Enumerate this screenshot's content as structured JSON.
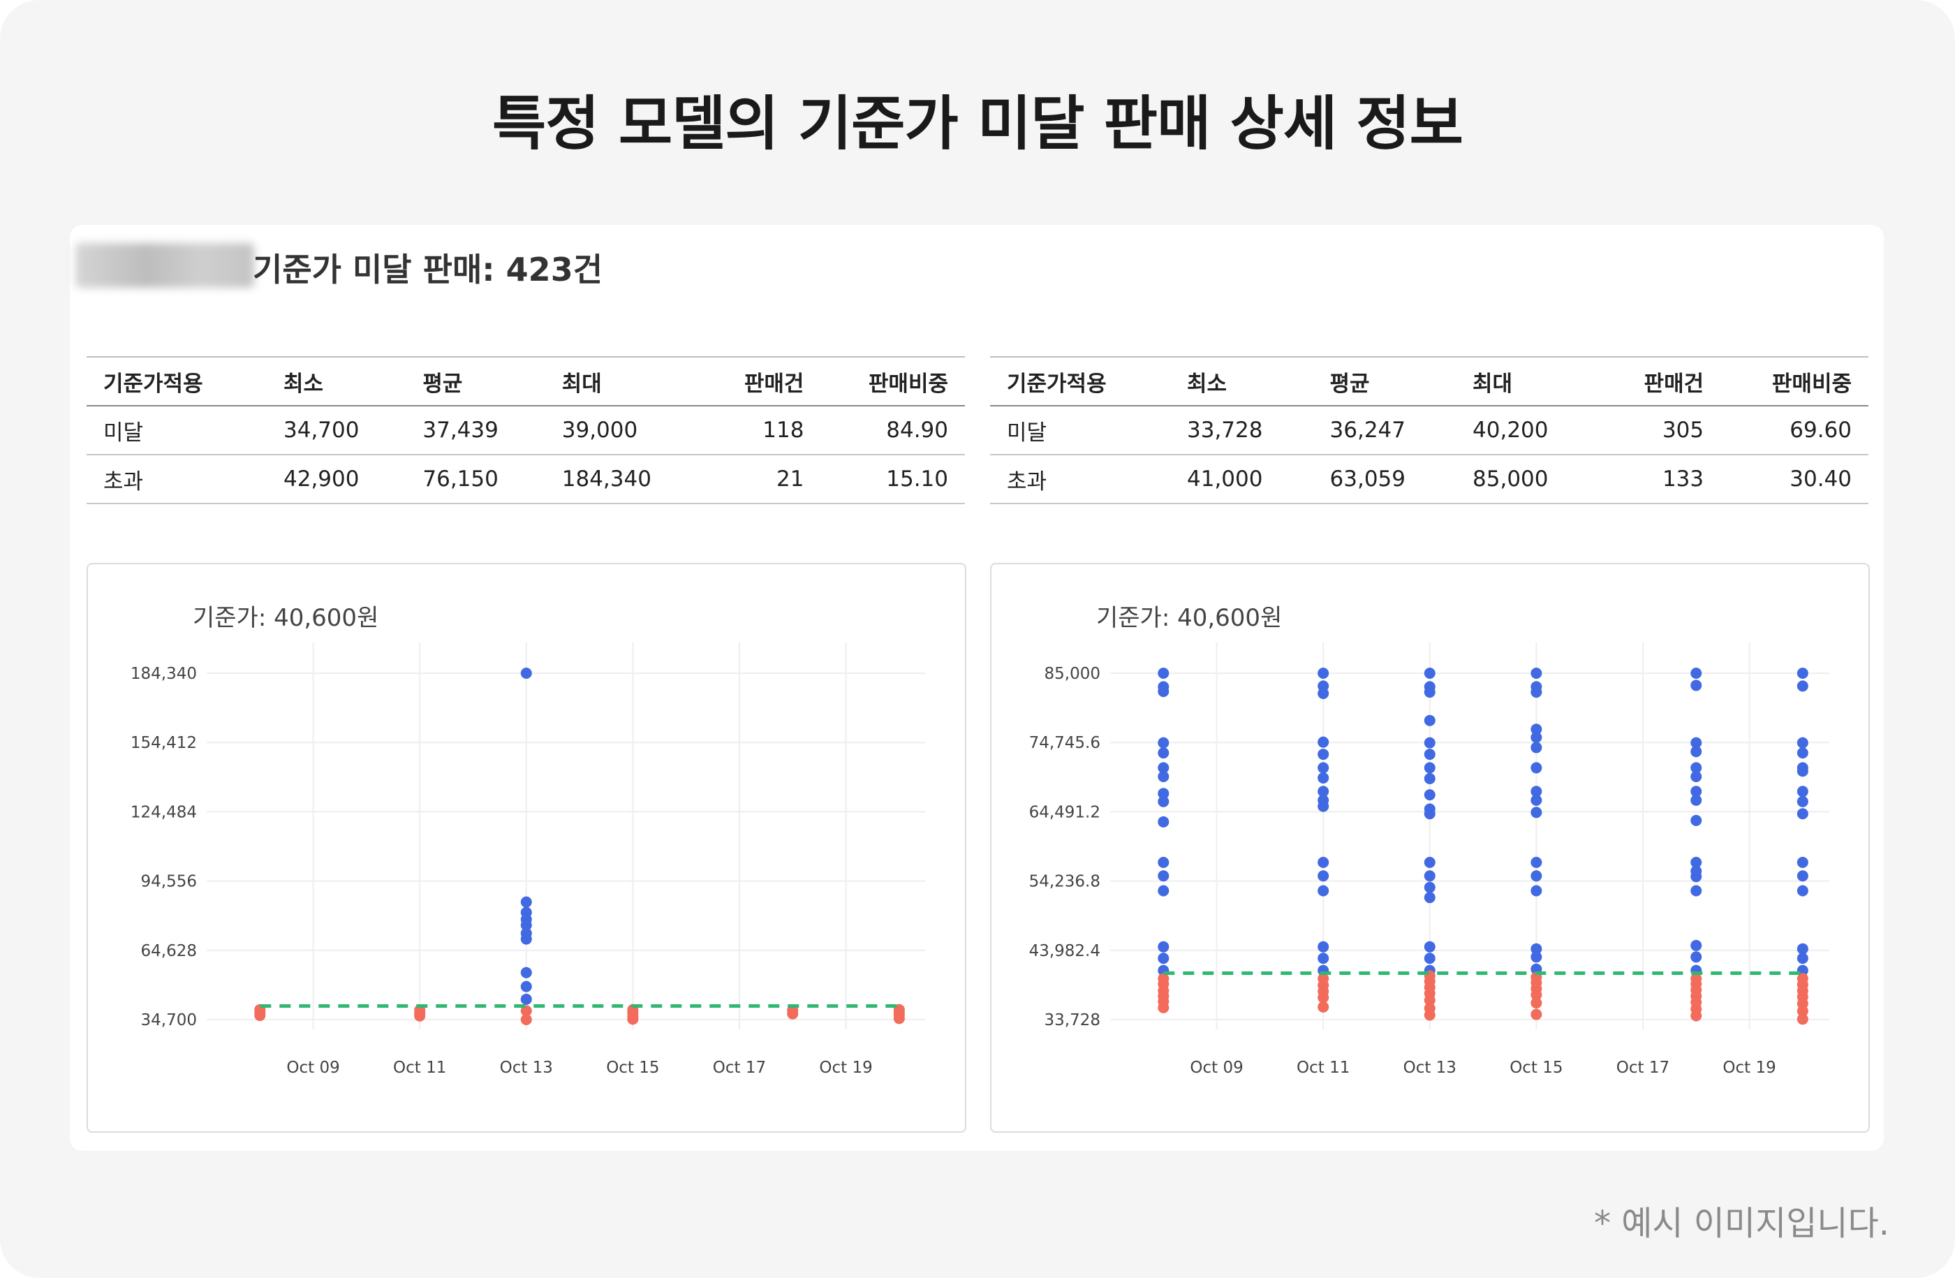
{
  "page": {
    "title": "특정 모델의 기준가 미달 판매 상세 정보",
    "note": "* 예시 이미지입니다."
  },
  "card": {
    "heading": "기준가 미달 판매: 423건"
  },
  "tables": [
    {
      "headers": [
        "기준가적용",
        "최소",
        "평균",
        "최대",
        "판매건",
        "판매비중"
      ],
      "rows": [
        [
          "미달",
          "34,700",
          "37,439",
          "39,000",
          "118",
          "84.90"
        ],
        [
          "초과",
          "42,900",
          "76,150",
          "184,340",
          "21",
          "15.10"
        ]
      ]
    },
    {
      "headers": [
        "기준가적용",
        "최소",
        "평균",
        "최대",
        "판매건",
        "판매비중"
      ],
      "rows": [
        [
          "미달",
          "33,728",
          "36,247",
          "40,200",
          "305",
          "69.60"
        ],
        [
          "초과",
          "41,000",
          "63,059",
          "85,000",
          "133",
          "30.40"
        ]
      ]
    }
  ],
  "colors": {
    "above": "#4169e1",
    "below": "#f26b5b",
    "reference": "#2eb872",
    "grid": "#eeeeee"
  },
  "chart_data": [
    {
      "type": "scatter",
      "title": "기준가: 40,600원",
      "reference_line": 40600,
      "x_ticks": [
        "Oct 09",
        "Oct 11",
        "Oct 13",
        "Oct 15",
        "Oct 17",
        "Oct 19"
      ],
      "y_ticks": [
        "34,700",
        "64,628",
        "94,556",
        "124,484",
        "154,412",
        "184,340"
      ],
      "ylim": [
        34700,
        184340
      ],
      "xlim_days": [
        7.0,
        20.5
      ],
      "series": [
        {
          "points": [
            {
              "x": "2024-10-13",
              "y": 184340
            },
            {
              "x": "2024-10-13",
              "y": 85500
            },
            {
              "x": "2024-10-13",
              "y": 81000
            },
            {
              "x": "2024-10-13",
              "y": 78000
            },
            {
              "x": "2024-10-13",
              "y": 75500
            },
            {
              "x": "2024-10-13",
              "y": 72000
            },
            {
              "x": "2024-10-13",
              "y": 69500
            },
            {
              "x": "2024-10-13",
              "y": 55000
            },
            {
              "x": "2024-10-13",
              "y": 49000
            },
            {
              "x": "2024-10-13",
              "y": 43500
            }
          ]
        },
        {
          "points": [
            {
              "x": "2024-10-08",
              "y": 39000
            },
            {
              "x": "2024-10-08",
              "y": 37800
            },
            {
              "x": "2024-10-08",
              "y": 36500
            },
            {
              "x": "2024-10-11",
              "y": 38800
            },
            {
              "x": "2024-10-11",
              "y": 37500
            },
            {
              "x": "2024-10-11",
              "y": 36300
            },
            {
              "x": "2024-10-13",
              "y": 38500
            },
            {
              "x": "2024-10-13",
              "y": 34700
            },
            {
              "x": "2024-10-15",
              "y": 39000
            },
            {
              "x": "2024-10-15",
              "y": 37600
            },
            {
              "x": "2024-10-15",
              "y": 36000
            },
            {
              "x": "2024-10-15",
              "y": 34900
            },
            {
              "x": "2024-10-18",
              "y": 38800
            },
            {
              "x": "2024-10-18",
              "y": 37200
            },
            {
              "x": "2024-10-20",
              "y": 39000
            },
            {
              "x": "2024-10-20",
              "y": 37800
            },
            {
              "x": "2024-10-20",
              "y": 36600
            },
            {
              "x": "2024-10-20",
              "y": 35200
            }
          ]
        }
      ]
    },
    {
      "type": "scatter",
      "title": "기준가: 40,600원",
      "reference_line": 40600,
      "x_ticks": [
        "Oct 09",
        "Oct 11",
        "Oct 13",
        "Oct 15",
        "Oct 17",
        "Oct 19"
      ],
      "y_ticks": [
        "33,728",
        "43,982.4",
        "54,236.8",
        "64,491.2",
        "74,745.6",
        "85,000"
      ],
      "ylim": [
        33728,
        85000
      ],
      "xlim_days": [
        7.0,
        20.5
      ],
      "series": [
        {
          "points": [
            {
              "x": "2024-10-08",
              "y": 85000
            },
            {
              "x": "2024-10-08",
              "y": 83000
            },
            {
              "x": "2024-10-08",
              "y": 82300
            },
            {
              "x": "2024-10-08",
              "y": 74700
            },
            {
              "x": "2024-10-08",
              "y": 73200
            },
            {
              "x": "2024-10-08",
              "y": 71000
            },
            {
              "x": "2024-10-08",
              "y": 69700
            },
            {
              "x": "2024-10-08",
              "y": 67200
            },
            {
              "x": "2024-10-08",
              "y": 66000
            },
            {
              "x": "2024-10-08",
              "y": 63000
            },
            {
              "x": "2024-10-08",
              "y": 57000
            },
            {
              "x": "2024-10-08",
              "y": 55000
            },
            {
              "x": "2024-10-08",
              "y": 52800
            },
            {
              "x": "2024-10-08",
              "y": 44500
            },
            {
              "x": "2024-10-08",
              "y": 42800
            },
            {
              "x": "2024-10-08",
              "y": 41000
            },
            {
              "x": "2024-10-11",
              "y": 85000
            },
            {
              "x": "2024-10-11",
              "y": 83100
            },
            {
              "x": "2024-10-11",
              "y": 82000
            },
            {
              "x": "2024-10-11",
              "y": 74800
            },
            {
              "x": "2024-10-11",
              "y": 73000
            },
            {
              "x": "2024-10-11",
              "y": 71000
            },
            {
              "x": "2024-10-11",
              "y": 69500
            },
            {
              "x": "2024-10-11",
              "y": 67500
            },
            {
              "x": "2024-10-11",
              "y": 66200
            },
            {
              "x": "2024-10-11",
              "y": 65300
            },
            {
              "x": "2024-10-11",
              "y": 57000
            },
            {
              "x": "2024-10-11",
              "y": 55000
            },
            {
              "x": "2024-10-11",
              "y": 52800
            },
            {
              "x": "2024-10-11",
              "y": 44500
            },
            {
              "x": "2024-10-11",
              "y": 42800
            },
            {
              "x": "2024-10-11",
              "y": 41000
            },
            {
              "x": "2024-10-13",
              "y": 85000
            },
            {
              "x": "2024-10-13",
              "y": 83000
            },
            {
              "x": "2024-10-13",
              "y": 82200
            },
            {
              "x": "2024-10-13",
              "y": 78000
            },
            {
              "x": "2024-10-13",
              "y": 74700
            },
            {
              "x": "2024-10-13",
              "y": 73000
            },
            {
              "x": "2024-10-13",
              "y": 71000
            },
            {
              "x": "2024-10-13",
              "y": 69400
            },
            {
              "x": "2024-10-13",
              "y": 67000
            },
            {
              "x": "2024-10-13",
              "y": 64900
            },
            {
              "x": "2024-10-13",
              "y": 64200
            },
            {
              "x": "2024-10-13",
              "y": 57000
            },
            {
              "x": "2024-10-13",
              "y": 55000
            },
            {
              "x": "2024-10-13",
              "y": 53300
            },
            {
              "x": "2024-10-13",
              "y": 51800
            },
            {
              "x": "2024-10-13",
              "y": 44500
            },
            {
              "x": "2024-10-13",
              "y": 42800
            },
            {
              "x": "2024-10-13",
              "y": 41000
            },
            {
              "x": "2024-10-15",
              "y": 85000
            },
            {
              "x": "2024-10-15",
              "y": 83000
            },
            {
              "x": "2024-10-15",
              "y": 82200
            },
            {
              "x": "2024-10-15",
              "y": 76700
            },
            {
              "x": "2024-10-15",
              "y": 75500
            },
            {
              "x": "2024-10-15",
              "y": 74000
            },
            {
              "x": "2024-10-15",
              "y": 71000
            },
            {
              "x": "2024-10-15",
              "y": 67500
            },
            {
              "x": "2024-10-15",
              "y": 66200
            },
            {
              "x": "2024-10-15",
              "y": 64400
            },
            {
              "x": "2024-10-15",
              "y": 57000
            },
            {
              "x": "2024-10-15",
              "y": 55000
            },
            {
              "x": "2024-10-15",
              "y": 52800
            },
            {
              "x": "2024-10-15",
              "y": 44200
            },
            {
              "x": "2024-10-15",
              "y": 43000
            },
            {
              "x": "2024-10-15",
              "y": 41200
            },
            {
              "x": "2024-10-18",
              "y": 85000
            },
            {
              "x": "2024-10-18",
              "y": 83200
            },
            {
              "x": "2024-10-18",
              "y": 74700
            },
            {
              "x": "2024-10-18",
              "y": 73400
            },
            {
              "x": "2024-10-18",
              "y": 71000
            },
            {
              "x": "2024-10-18",
              "y": 69700
            },
            {
              "x": "2024-10-18",
              "y": 67500
            },
            {
              "x": "2024-10-18",
              "y": 66200
            },
            {
              "x": "2024-10-18",
              "y": 63200
            },
            {
              "x": "2024-10-18",
              "y": 57000
            },
            {
              "x": "2024-10-18",
              "y": 55700
            },
            {
              "x": "2024-10-18",
              "y": 54900
            },
            {
              "x": "2024-10-18",
              "y": 52800
            },
            {
              "x": "2024-10-18",
              "y": 44700
            },
            {
              "x": "2024-10-18",
              "y": 43000
            },
            {
              "x": "2024-10-18",
              "y": 41000
            },
            {
              "x": "2024-10-20",
              "y": 85000
            },
            {
              "x": "2024-10-20",
              "y": 83100
            },
            {
              "x": "2024-10-20",
              "y": 74700
            },
            {
              "x": "2024-10-20",
              "y": 73200
            },
            {
              "x": "2024-10-20",
              "y": 71000
            },
            {
              "x": "2024-10-20",
              "y": 70500
            },
            {
              "x": "2024-10-20",
              "y": 67500
            },
            {
              "x": "2024-10-20",
              "y": 66000
            },
            {
              "x": "2024-10-20",
              "y": 64200
            },
            {
              "x": "2024-10-20",
              "y": 57000
            },
            {
              "x": "2024-10-20",
              "y": 55000
            },
            {
              "x": "2024-10-20",
              "y": 52800
            },
            {
              "x": "2024-10-20",
              "y": 44200
            },
            {
              "x": "2024-10-20",
              "y": 42800
            },
            {
              "x": "2024-10-20",
              "y": 41000
            }
          ]
        },
        {
          "points": [
            {
              "x": "2024-10-08",
              "y": 39800
            },
            {
              "x": "2024-10-08",
              "y": 39000
            },
            {
              "x": "2024-10-08",
              "y": 38000
            },
            {
              "x": "2024-10-08",
              "y": 37200
            },
            {
              "x": "2024-10-08",
              "y": 36400
            },
            {
              "x": "2024-10-08",
              "y": 35500
            },
            {
              "x": "2024-10-11",
              "y": 39800
            },
            {
              "x": "2024-10-11",
              "y": 38800
            },
            {
              "x": "2024-10-11",
              "y": 37900
            },
            {
              "x": "2024-10-11",
              "y": 37000
            },
            {
              "x": "2024-10-11",
              "y": 35600
            },
            {
              "x": "2024-10-13",
              "y": 40200
            },
            {
              "x": "2024-10-13",
              "y": 39400
            },
            {
              "x": "2024-10-13",
              "y": 38500
            },
            {
              "x": "2024-10-13",
              "y": 37600
            },
            {
              "x": "2024-10-13",
              "y": 36600
            },
            {
              "x": "2024-10-13",
              "y": 35400
            },
            {
              "x": "2024-10-13",
              "y": 34400
            },
            {
              "x": "2024-10-15",
              "y": 40000
            },
            {
              "x": "2024-10-15",
              "y": 39200
            },
            {
              "x": "2024-10-15",
              "y": 38300
            },
            {
              "x": "2024-10-15",
              "y": 37400
            },
            {
              "x": "2024-10-15",
              "y": 36200
            },
            {
              "x": "2024-10-15",
              "y": 34500
            },
            {
              "x": "2024-10-18",
              "y": 39800
            },
            {
              "x": "2024-10-18",
              "y": 39000
            },
            {
              "x": "2024-10-18",
              "y": 38100
            },
            {
              "x": "2024-10-18",
              "y": 37200
            },
            {
              "x": "2024-10-18",
              "y": 36300
            },
            {
              "x": "2024-10-18",
              "y": 35300
            },
            {
              "x": "2024-10-18",
              "y": 34300
            },
            {
              "x": "2024-10-20",
              "y": 39800
            },
            {
              "x": "2024-10-20",
              "y": 38900
            },
            {
              "x": "2024-10-20",
              "y": 38000
            },
            {
              "x": "2024-10-20",
              "y": 37100
            },
            {
              "x": "2024-10-20",
              "y": 36100
            },
            {
              "x": "2024-10-20",
              "y": 35000
            },
            {
              "x": "2024-10-20",
              "y": 33800
            }
          ]
        }
      ]
    }
  ]
}
